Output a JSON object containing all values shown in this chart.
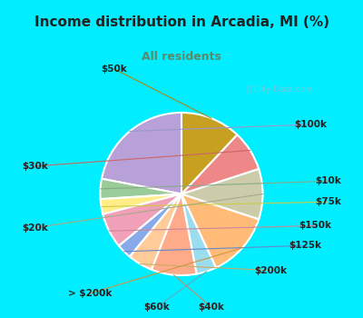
{
  "title": "Income distribution in Arcadia, MI (%)",
  "subtitle": "All residents",
  "title_color": "#222222",
  "subtitle_color": "#5a8a6a",
  "bg_cyan": "#00eeff",
  "bg_chart": "#d8f0e8",
  "watermark": "ⓘ City-Data.com",
  "labels": [
    "$100k",
    "$10k",
    "$75k",
    "$150k",
    "$125k",
    "$200k",
    "$40k",
    "$60k",
    "> $200k",
    "$20k",
    "$30k",
    "$50k"
  ],
  "values": [
    22,
    4,
    3,
    7,
    3,
    5,
    9,
    4,
    13,
    10,
    8,
    12
  ],
  "colors": [
    "#b8a0d8",
    "#99cc99",
    "#ffee88",
    "#f0a0b8",
    "#88aae8",
    "#ffcc99",
    "#ffaa88",
    "#99ddee",
    "#ffbb77",
    "#ccccaa",
    "#ee8888",
    "#c8a020"
  ],
  "line_colors": [
    "#9999cc",
    "#88aa88",
    "#cccc44",
    "#cc8899",
    "#6688cc",
    "#ccaa66",
    "#cc8866",
    "#66aabb",
    "#cc9944",
    "#aaa888",
    "#cc6666",
    "#aa8810"
  ],
  "startangle": 90,
  "label_fontsize": 7.5
}
